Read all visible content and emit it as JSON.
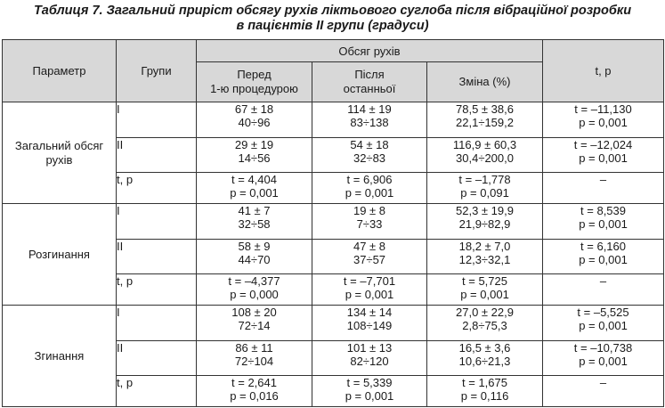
{
  "caption": {
    "line1": "Таблиця 7. Загальний приріст обсягу рухів ліктьового суглоба після вібраційної розробки",
    "line2": "в пацієнтів II групи (градуси)"
  },
  "header": {
    "param": "Параметр",
    "groups": "Групи",
    "volume": "Обсяг рухів",
    "before_line1": "Перед",
    "before_line2": "1-ю процедурою",
    "after_line1": "Після",
    "after_line2": "останньої",
    "change": "Зміна (%)",
    "tp": "t, p"
  },
  "sections": [
    {
      "param_line1": "Загальний обсяг",
      "param_line2": "рухів",
      "rows": [
        {
          "group": "I",
          "before": [
            "67 ± 18",
            "40÷96"
          ],
          "after": [
            "114 ± 19",
            "83÷138"
          ],
          "change": [
            "78,5 ± 38,6",
            "22,1÷159,2"
          ],
          "tp": [
            "t = –11,130",
            "p = 0,001"
          ]
        },
        {
          "group": "II",
          "before": [
            "29 ± 19",
            "14÷56"
          ],
          "after": [
            "54 ± 18",
            "32÷83"
          ],
          "change": [
            "116,9 ± 60,3",
            "30,4÷200,0"
          ],
          "tp": [
            "t = –12,024",
            "p = 0,001"
          ]
        },
        {
          "group": "t, p",
          "before": [
            "t = 4,404",
            "p = 0,001"
          ],
          "after": [
            "t = 6,906",
            "p = 0,001"
          ],
          "change": [
            "t = –1,778",
            "p = 0,091"
          ],
          "tp": [
            "–",
            ""
          ]
        }
      ]
    },
    {
      "param_line1": "Розгинання",
      "param_line2": "",
      "rows": [
        {
          "group": "I",
          "before": [
            "41 ± 7",
            "32÷58"
          ],
          "after": [
            "19 ± 8",
            "7÷33"
          ],
          "change": [
            "52,3 ± 19,9",
            "21,9÷82,9"
          ],
          "tp": [
            "t = 8,539",
            "p = 0,001"
          ]
        },
        {
          "group": "II",
          "before": [
            "58 ± 9",
            "44÷70"
          ],
          "after": [
            "47 ± 8",
            "37÷57"
          ],
          "change": [
            "18,2 ± 7,0",
            "12,3÷32,1"
          ],
          "tp": [
            "t = 6,160",
            "p = 0,001"
          ]
        },
        {
          "group": "t, p",
          "before": [
            "t = –4,377",
            "p = 0,000"
          ],
          "after": [
            "t = –7,701",
            "p = 0,001"
          ],
          "change": [
            "t = 5,725",
            "p = 0,001"
          ],
          "tp": [
            "–",
            ""
          ]
        }
      ]
    },
    {
      "param_line1": "Згинання",
      "param_line2": "",
      "rows": [
        {
          "group": "I",
          "before": [
            "108 ± 20",
            "72÷14"
          ],
          "after": [
            "134 ± 14",
            "108÷149"
          ],
          "change": [
            "27,0 ± 22,9",
            "2,8÷75,3"
          ],
          "tp": [
            "t = –5,525",
            "p = 0,001"
          ]
        },
        {
          "group": "II",
          "before": [
            "86 ± 11",
            "72÷104"
          ],
          "after": [
            "101 ± 13",
            "82÷120"
          ],
          "change": [
            "16,5 ± 3,6",
            "10,6÷21,3"
          ],
          "tp": [
            "t = –10,738",
            "p = 0,001"
          ]
        },
        {
          "group": "t, p",
          "before": [
            "t = 2,641",
            "p = 0,016"
          ],
          "after": [
            "t = 5,339",
            "p = 0,001"
          ],
          "change": [
            "t = 1,675",
            "p = 0,116"
          ],
          "tp": [
            "–",
            ""
          ]
        }
      ]
    }
  ]
}
